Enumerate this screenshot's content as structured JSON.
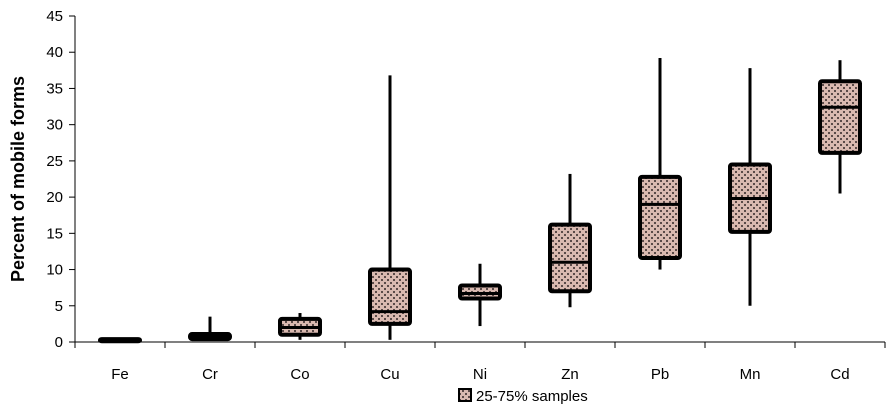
{
  "chart_data": {
    "type": "boxplot",
    "title": "",
    "xlabel": "",
    "ylabel": "Percent of mobile forms",
    "ylim": [
      0,
      45
    ],
    "yticks": [
      0,
      5,
      10,
      15,
      20,
      25,
      30,
      35,
      40,
      45
    ],
    "grid": false,
    "legend": {
      "label": "25-75% samples",
      "position": "bottom"
    },
    "colors": {
      "box_fill": "#d9b9b0",
      "pattern_dot": "#5a4a48",
      "stroke": "#000000"
    },
    "categories": [
      "Fe",
      "Cr",
      "Co",
      "Cu",
      "Ni",
      "Zn",
      "Pb",
      "Mn",
      "Cd"
    ],
    "series": [
      {
        "min": 0.0,
        "q1": 0.1,
        "median": 0.2,
        "q3": 0.4,
        "max": 0.6
      },
      {
        "min": 0.3,
        "q1": 0.4,
        "median": 0.7,
        "q3": 1.1,
        "max": 3.5
      },
      {
        "min": 0.3,
        "q1": 1.0,
        "median": 2.0,
        "q3": 3.2,
        "max": 4.0
      },
      {
        "min": 0.3,
        "q1": 2.5,
        "median": 4.2,
        "q3": 10.0,
        "max": 36.8
      },
      {
        "min": 2.2,
        "q1": 6.0,
        "median": 6.7,
        "q3": 7.8,
        "max": 10.8
      },
      {
        "min": 4.8,
        "q1": 7.0,
        "median": 11.0,
        "q3": 16.2,
        "max": 23.2
      },
      {
        "min": 10.0,
        "q1": 11.6,
        "median": 19.0,
        "q3": 22.8,
        "max": 39.2
      },
      {
        "min": 5.0,
        "q1": 15.2,
        "median": 19.8,
        "q3": 24.5,
        "max": 37.8
      },
      {
        "min": 20.5,
        "q1": 26.1,
        "median": 32.4,
        "q3": 36.0,
        "max": 38.9
      }
    ]
  }
}
